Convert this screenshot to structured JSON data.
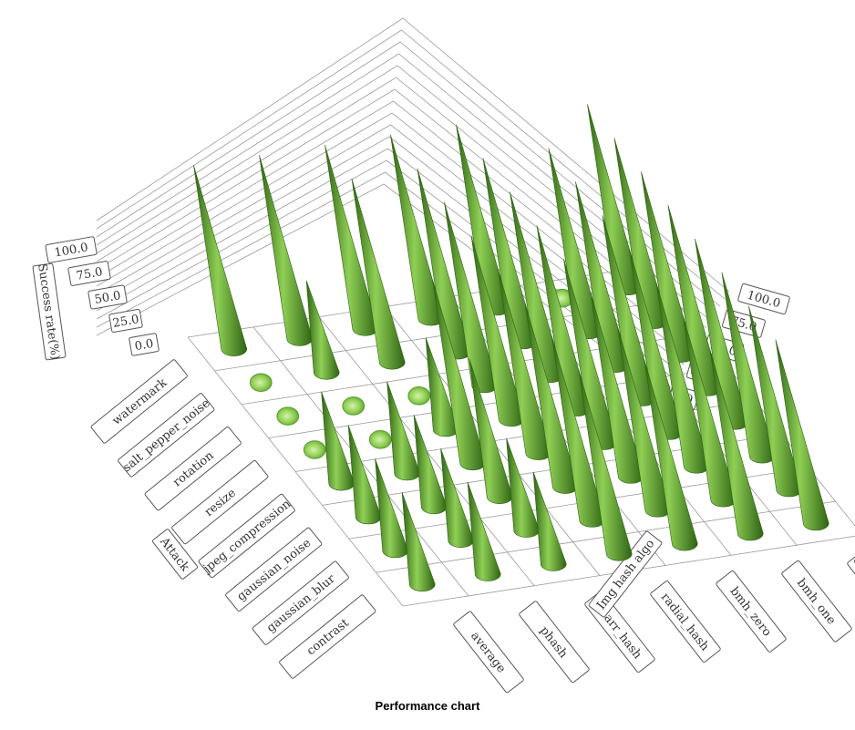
{
  "chart_data": {
    "type": "3d-cone",
    "title": "Performance chart",
    "xlabel": "Attack",
    "ylabel": "Img hash algo",
    "zlabel": "Success rate(%)",
    "attacks": [
      "watermark",
      "salt_pepper_noise",
      "rotation",
      "resize",
      "jpeg_compression",
      "gaussian_noise",
      "gaussian_blur",
      "contrast"
    ],
    "algorithms": [
      "average",
      "phash",
      "marr_hash",
      "radial_hash",
      "bmh_zero",
      "bmh_one",
      "color_moment"
    ],
    "z_ticks": [
      "0.0",
      "25.0",
      "50.0",
      "75.0",
      "100.0"
    ],
    "zlim": [
      0,
      100
    ],
    "grid": true,
    "colors": {
      "cone": "#5a9e2f",
      "cone_light": "#8fcf55",
      "cone_dark": "#2f6314",
      "grid": "#9a9a9a"
    },
    "values": [
      [
        100,
        100,
        100,
        100,
        100,
        5,
        100
      ],
      [
        2,
        50,
        100,
        100,
        100,
        100,
        100
      ],
      [
        2,
        2,
        2,
        100,
        100,
        100,
        100
      ],
      [
        2,
        2,
        50,
        100,
        100,
        100,
        100
      ],
      [
        50,
        50,
        100,
        100,
        100,
        100,
        100
      ],
      [
        50,
        50,
        75,
        100,
        100,
        100,
        100
      ],
      [
        50,
        50,
        50,
        100,
        100,
        100,
        100
      ],
      [
        50,
        50,
        50,
        100,
        100,
        100,
        100
      ]
    ]
  }
}
